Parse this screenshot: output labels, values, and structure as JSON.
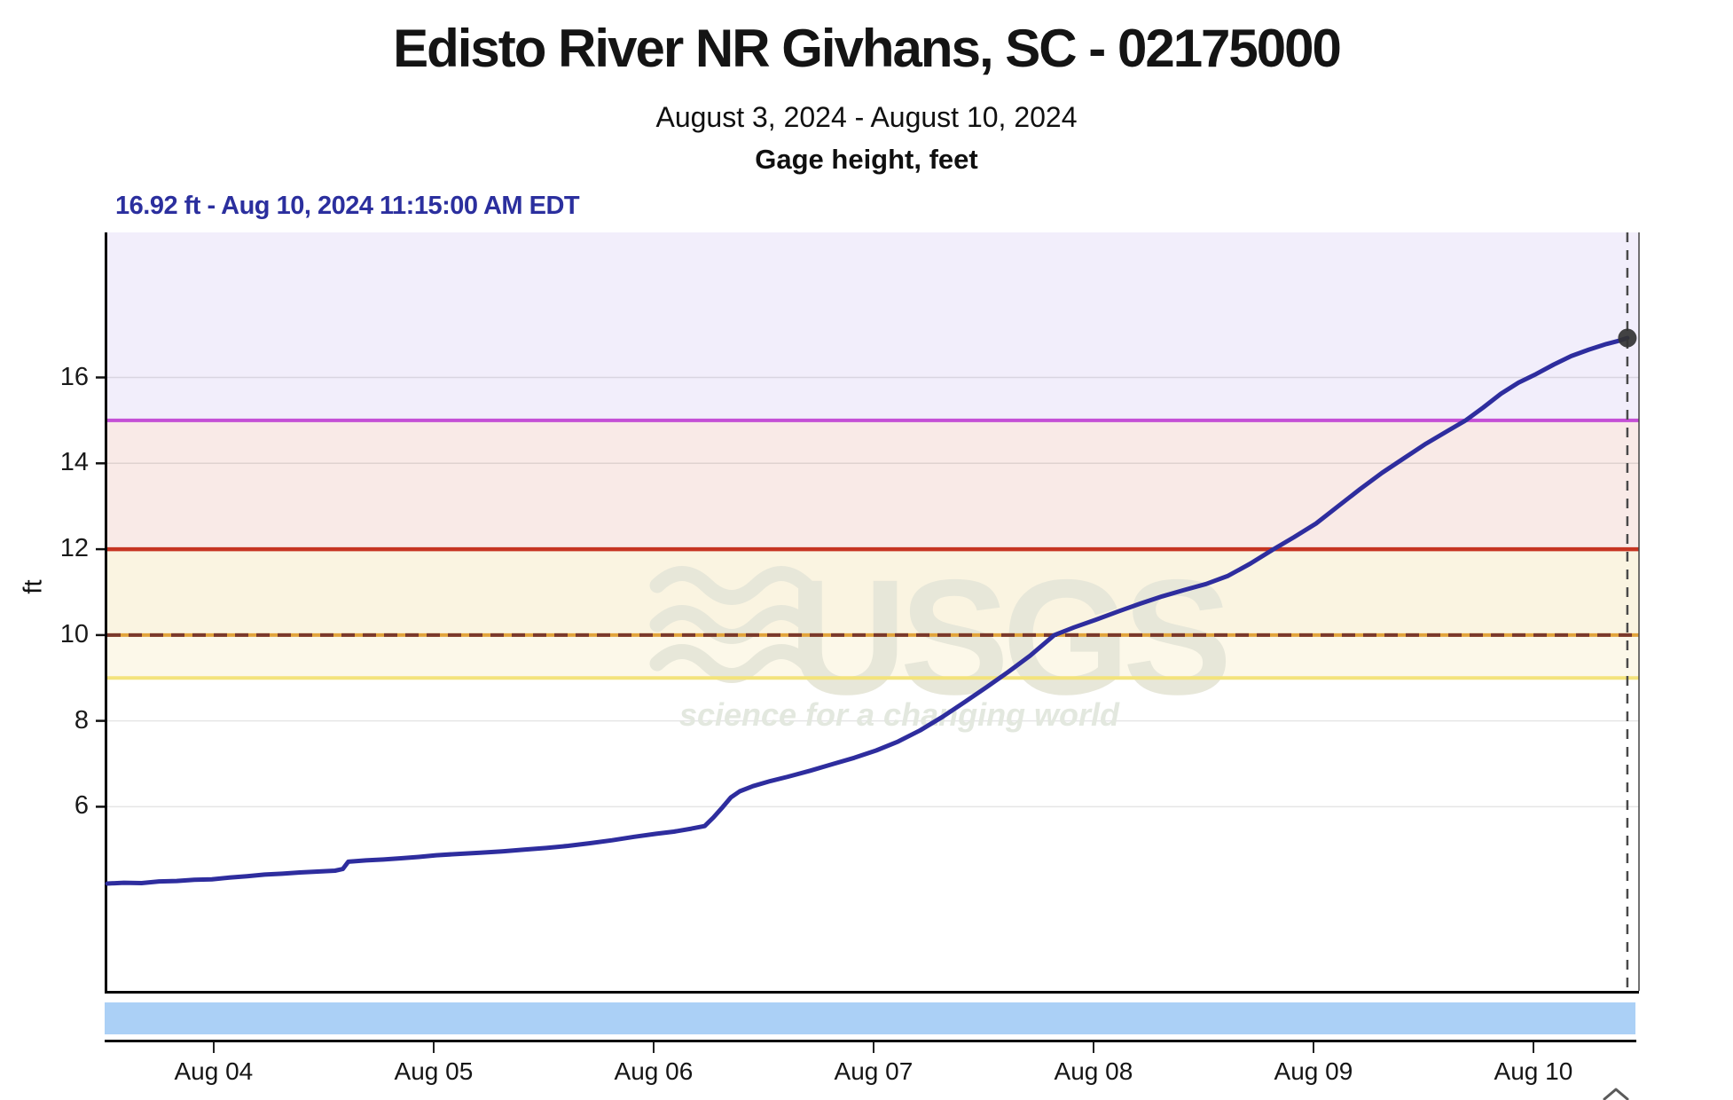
{
  "header": {
    "title": "Edisto River NR Givhans, SC - 02175000",
    "date_range": "August 3, 2024 - August 10, 2024",
    "parameter": "Gage height, feet",
    "latest_reading": "16.92 ft - Aug 10, 2024 11:15:00 AM EDT"
  },
  "watermark": {
    "logo_text": "USGS",
    "tagline": "science for a changing world"
  },
  "icons": {
    "collapse_control": "chevron-up-icon"
  },
  "colors": {
    "hydrograph_line": "#2e2d9e",
    "annotation_text": "#2b2f9e",
    "major_line": "#c44fd6",
    "moderate_line": "#c63522",
    "flood_line_solid": "#e2a43c",
    "flood_line_dash": "#7a392c",
    "action_line": "#f3e37c",
    "band_above_15": "#f2eefb",
    "band_12_15": "#f9eae7",
    "band_10_12": "#faf4e1",
    "band_9_10": "#fcf8e9",
    "slider_track": "#abd0f6",
    "axis": "#111111",
    "marker_dot": "#333333",
    "marker_dashed_line": "#4a4a4a"
  },
  "chart_data": {
    "type": "line",
    "title": "Gage height, feet",
    "ylabel": "ft",
    "ylim": [
      1.71,
      19.38
    ],
    "y_ticks": [
      6,
      8,
      10,
      12,
      14,
      16
    ],
    "x_days_lim": [
      3.5045,
      10.468
    ],
    "x_ticks": [
      {
        "day": 4,
        "label": "Aug 04"
      },
      {
        "day": 5,
        "label": "Aug 05"
      },
      {
        "day": 6,
        "label": "Aug 06"
      },
      {
        "day": 7,
        "label": "Aug 07"
      },
      {
        "day": 8,
        "label": "Aug 08"
      },
      {
        "day": 9,
        "label": "Aug 09"
      },
      {
        "day": 10,
        "label": "Aug 10"
      }
    ],
    "grid": "horizontal-only",
    "legend": "none",
    "bands": [
      {
        "from": 15,
        "to": 19.38,
        "color": "#f2eefb"
      },
      {
        "from": 12,
        "to": 15,
        "color": "#f9eae7"
      },
      {
        "from": 10,
        "to": 12,
        "color": "#faf4e1"
      },
      {
        "from": 9,
        "to": 10,
        "color": "#fcf8e9"
      }
    ],
    "threshold_lines": [
      {
        "value_ft": 9,
        "color": "#f3e37c",
        "style": "solid",
        "width": 4
      },
      {
        "value_ft": 10,
        "color": "#e2a43c",
        "style": "solid",
        "width": 4,
        "overlay_dash_color": "#7a392c"
      },
      {
        "value_ft": 12,
        "color": "#c63522",
        "style": "solid",
        "width": 4.5
      },
      {
        "value_ft": 15,
        "color": "#c44fd6",
        "style": "solid",
        "width": 4
      }
    ],
    "current_marker": {
      "day": 10.415,
      "value_ft": 16.92,
      "label": "16.92 ft - Aug 10, 2024 11:15:00 AM EDT"
    },
    "series": [
      {
        "name": "Gage height, feet",
        "color": "#2e2d9e",
        "width": 5,
        "points": [
          [
            3.5045,
            4.21
          ],
          [
            3.58,
            4.23
          ],
          [
            3.66,
            4.22
          ],
          [
            3.74,
            4.26
          ],
          [
            3.82,
            4.27
          ],
          [
            3.9,
            4.3
          ],
          [
            3.98,
            4.31
          ],
          [
            4.06,
            4.35
          ],
          [
            4.14,
            4.38
          ],
          [
            4.22,
            4.42
          ],
          [
            4.3,
            4.44
          ],
          [
            4.38,
            4.47
          ],
          [
            4.46,
            4.49
          ],
          [
            4.54,
            4.51
          ],
          [
            4.575,
            4.55
          ],
          [
            4.6,
            4.72
          ],
          [
            4.68,
            4.75
          ],
          [
            4.76,
            4.77
          ],
          [
            4.84,
            4.8
          ],
          [
            4.92,
            4.83
          ],
          [
            5.0,
            4.87
          ],
          [
            5.1,
            4.9
          ],
          [
            5.2,
            4.93
          ],
          [
            5.3,
            4.96
          ],
          [
            5.4,
            5.0
          ],
          [
            5.5,
            5.04
          ],
          [
            5.6,
            5.09
          ],
          [
            5.7,
            5.15
          ],
          [
            5.8,
            5.22
          ],
          [
            5.9,
            5.3
          ],
          [
            6.0,
            5.37
          ],
          [
            6.08,
            5.42
          ],
          [
            6.16,
            5.49
          ],
          [
            6.22,
            5.55
          ],
          [
            6.26,
            5.75
          ],
          [
            6.3,
            5.98
          ],
          [
            6.34,
            6.22
          ],
          [
            6.38,
            6.36
          ],
          [
            6.44,
            6.48
          ],
          [
            6.52,
            6.6
          ],
          [
            6.6,
            6.7
          ],
          [
            6.7,
            6.84
          ],
          [
            6.8,
            6.99
          ],
          [
            6.9,
            7.14
          ],
          [
            7.0,
            7.31
          ],
          [
            7.1,
            7.52
          ],
          [
            7.2,
            7.78
          ],
          [
            7.3,
            8.09
          ],
          [
            7.4,
            8.43
          ],
          [
            7.5,
            8.78
          ],
          [
            7.6,
            9.14
          ],
          [
            7.7,
            9.52
          ],
          [
            7.81,
            10.0
          ],
          [
            7.9,
            10.18
          ],
          [
            8.0,
            10.36
          ],
          [
            8.1,
            10.55
          ],
          [
            8.2,
            10.73
          ],
          [
            8.3,
            10.9
          ],
          [
            8.4,
            11.05
          ],
          [
            8.5,
            11.19
          ],
          [
            8.6,
            11.38
          ],
          [
            8.7,
            11.66
          ],
          [
            8.8,
            11.98
          ],
          [
            8.9,
            12.28
          ],
          [
            9.0,
            12.6
          ],
          [
            9.1,
            13.0
          ],
          [
            9.2,
            13.4
          ],
          [
            9.3,
            13.78
          ],
          [
            9.4,
            14.12
          ],
          [
            9.5,
            14.46
          ],
          [
            9.6,
            14.76
          ],
          [
            9.68,
            15.0
          ],
          [
            9.76,
            15.3
          ],
          [
            9.84,
            15.62
          ],
          [
            9.92,
            15.88
          ],
          [
            10.0,
            16.08
          ],
          [
            10.08,
            16.3
          ],
          [
            10.16,
            16.5
          ],
          [
            10.24,
            16.65
          ],
          [
            10.32,
            16.78
          ],
          [
            10.38,
            16.86
          ],
          [
            10.415,
            16.92
          ]
        ]
      }
    ]
  }
}
